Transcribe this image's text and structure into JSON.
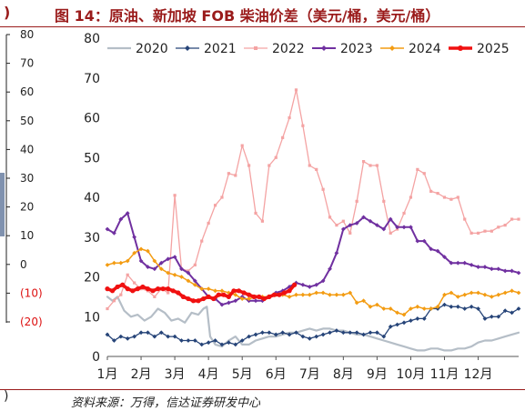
{
  "title": "图 14：原油、新加坡 FOB 柴油价差（美元/桶，美元/桶）",
  "source": "资料来源：万得，信达证券研发中心",
  "left_panel": {
    "ticks": [
      "80",
      "70",
      "60",
      "50",
      "40",
      "30",
      "20",
      "10",
      "0",
      "(10)",
      "(20)"
    ],
    "neg_color": "#dd1111"
  },
  "chart_data": {
    "type": "line",
    "title": "",
    "xlabel": "",
    "ylabel": "",
    "ylim": [
      0,
      80
    ],
    "yticks": [
      0,
      10,
      20,
      30,
      40,
      50,
      60,
      70,
      80
    ],
    "x_range": [
      1,
      13.2
    ],
    "xtick_positions": [
      1,
      2,
      3,
      4,
      5,
      6,
      7,
      8,
      9,
      10,
      11,
      12
    ],
    "xtick_labels": [
      "1月",
      "2月",
      "3月",
      "4月",
      "5月",
      "6月",
      "7月",
      "8月",
      "9月",
      "10月",
      "11月",
      "12月"
    ],
    "grid": false,
    "legend": "top",
    "series": [
      {
        "name": "2020",
        "color": "#b5bec7",
        "width": 2.2,
        "marker": "none",
        "x": [
          1.0,
          1.15,
          1.3,
          1.5,
          1.7,
          1.9,
          2.1,
          2.3,
          2.5,
          2.7,
          2.9,
          3.1,
          3.3,
          3.5,
          3.7,
          3.85,
          3.95,
          4.05,
          4.2,
          4.4,
          4.6,
          4.8,
          5.0,
          5.2,
          5.4,
          5.6,
          5.8,
          6.0,
          6.2,
          6.4,
          6.6,
          6.8,
          7.0,
          7.2,
          7.4,
          7.6,
          7.8,
          8.0,
          8.2,
          8.4,
          8.6,
          8.8,
          9.0,
          9.2,
          9.4,
          9.6,
          9.8,
          10.0,
          10.2,
          10.4,
          10.6,
          10.8,
          11.0,
          11.2,
          11.4,
          11.6,
          11.8,
          12.0,
          12.2,
          12.4,
          12.6,
          12.8,
          13.0,
          13.2
        ],
        "y": [
          15,
          14,
          15,
          11.5,
          10,
          10.5,
          9,
          10,
          12,
          11,
          9,
          9.5,
          8.5,
          11,
          10.5,
          12,
          12.5,
          5,
          3,
          2.5,
          4,
          5,
          3,
          3,
          4,
          4.5,
          5,
          5,
          5.5,
          6,
          6,
          6.5,
          7,
          6.5,
          7,
          7,
          6.5,
          6.5,
          6,
          5.5,
          5.5,
          5,
          4.5,
          4,
          3.5,
          3,
          2.5,
          2,
          1.5,
          1.5,
          2,
          2,
          1.5,
          1.5,
          2,
          2,
          2.5,
          3.5,
          4,
          4,
          4.5,
          5,
          5.5,
          6
        ]
      },
      {
        "name": "2021",
        "color": "#264478",
        "width": 1.3,
        "marker": "diamond",
        "x": [
          1.0,
          1.2,
          1.4,
          1.6,
          1.8,
          2.0,
          2.2,
          2.4,
          2.6,
          2.8,
          3.0,
          3.2,
          3.4,
          3.6,
          3.8,
          4.0,
          4.2,
          4.4,
          4.6,
          4.8,
          5.0,
          5.2,
          5.4,
          5.6,
          5.8,
          6.0,
          6.2,
          6.4,
          6.6,
          6.8,
          7.0,
          7.2,
          7.4,
          7.6,
          7.8,
          8.0,
          8.2,
          8.4,
          8.6,
          8.8,
          9.0,
          9.2,
          9.4,
          9.6,
          9.8,
          10.0,
          10.2,
          10.4,
          10.6,
          10.8,
          11.0,
          11.2,
          11.4,
          11.6,
          11.8,
          12.0,
          12.2,
          12.4,
          12.6,
          12.8,
          13.0,
          13.2
        ],
        "y": [
          5.5,
          4,
          5,
          4.5,
          5,
          6,
          6,
          5,
          6,
          5,
          5,
          4,
          4,
          4,
          3,
          3.5,
          4,
          3,
          3.5,
          3,
          4,
          5,
          5.5,
          6,
          6,
          5.5,
          6,
          5.5,
          6,
          5,
          4.5,
          5,
          5.5,
          6,
          6.5,
          6,
          6,
          6,
          5.5,
          6,
          6,
          5,
          7.5,
          8,
          8.5,
          9,
          9.5,
          9.5,
          12,
          12,
          13,
          12.5,
          12.5,
          12,
          12.5,
          12,
          9.5,
          10,
          10,
          11.5,
          11,
          12
        ]
      },
      {
        "name": "2022",
        "color": "#f4a3a3",
        "width": 1.3,
        "marker": "square",
        "x": [
          1.0,
          1.2,
          1.4,
          1.6,
          1.8,
          2.0,
          2.2,
          2.4,
          2.6,
          2.8,
          3.0,
          3.2,
          3.4,
          3.6,
          3.8,
          4.0,
          4.2,
          4.4,
          4.6,
          4.8,
          5.0,
          5.2,
          5.4,
          5.6,
          5.8,
          6.0,
          6.2,
          6.4,
          6.6,
          6.8,
          7.0,
          7.2,
          7.4,
          7.6,
          7.8,
          8.0,
          8.2,
          8.4,
          8.6,
          8.8,
          9.0,
          9.2,
          9.4,
          9.6,
          9.8,
          10.0,
          10.2,
          10.4,
          10.6,
          10.8,
          11.0,
          11.2,
          11.4,
          11.6,
          11.8,
          12.0,
          12.2,
          12.4,
          12.6,
          12.8,
          13.0,
          13.2
        ],
        "y": [
          12,
          14,
          15.5,
          20.5,
          18.5,
          17,
          16.5,
          15,
          17,
          16,
          40.5,
          22,
          21.5,
          23,
          29,
          33.5,
          38,
          40,
          46,
          45.5,
          53,
          48,
          36,
          34,
          48,
          50,
          55,
          60,
          67,
          58,
          48,
          47,
          42,
          35,
          33,
          34,
          31,
          39,
          49,
          48,
          48,
          39,
          31,
          32,
          36,
          40,
          47,
          46,
          41.5,
          41,
          40,
          39.5,
          40,
          34.5,
          31,
          31,
          31.5,
          31.5,
          32.5,
          33,
          34.5,
          34.5
        ]
      },
      {
        "name": "2023",
        "color": "#7030a0",
        "width": 2.0,
        "marker": "diamond",
        "x": [
          1.0,
          1.2,
          1.4,
          1.6,
          1.8,
          2.0,
          2.2,
          2.4,
          2.6,
          2.8,
          3.0,
          3.2,
          3.4,
          3.6,
          3.8,
          4.0,
          4.2,
          4.4,
          4.6,
          4.8,
          5.0,
          5.2,
          5.4,
          5.6,
          5.8,
          6.0,
          6.2,
          6.4,
          6.6,
          6.8,
          7.0,
          7.2,
          7.4,
          7.6,
          7.8,
          8.0,
          8.2,
          8.4,
          8.6,
          8.8,
          9.0,
          9.2,
          9.4,
          9.6,
          9.8,
          10.0,
          10.2,
          10.4,
          10.6,
          10.8,
          11.0,
          11.2,
          11.4,
          11.6,
          11.8,
          12.0,
          12.2,
          12.4,
          12.6,
          12.8,
          13.0,
          13.2
        ],
        "y": [
          32,
          31,
          34.5,
          36,
          30,
          24,
          22.5,
          22,
          23.5,
          24.5,
          25,
          22,
          21,
          19,
          17,
          15,
          14.5,
          13,
          13.5,
          14,
          15,
          14,
          14,
          14,
          15,
          16,
          16.5,
          17.5,
          18.5,
          18,
          17.5,
          18,
          19,
          22,
          26,
          32,
          33,
          33.5,
          35,
          34,
          33,
          32,
          34.5,
          32.5,
          32.5,
          32.5,
          29,
          29,
          27,
          26.5,
          25,
          23.5,
          23.5,
          23.5,
          23,
          22.5,
          22.5,
          22,
          22,
          21.5,
          21.5,
          21
        ]
      },
      {
        "name": "2024",
        "color": "#f39c12",
        "width": 1.5,
        "marker": "diamond",
        "x": [
          1.0,
          1.2,
          1.4,
          1.6,
          1.8,
          2.0,
          2.2,
          2.4,
          2.6,
          2.8,
          3.0,
          3.2,
          3.4,
          3.6,
          3.8,
          4.0,
          4.2,
          4.4,
          4.6,
          4.8,
          5.0,
          5.2,
          5.4,
          5.6,
          5.8,
          6.0,
          6.2,
          6.4,
          6.6,
          6.8,
          7.0,
          7.2,
          7.4,
          7.6,
          7.8,
          8.0,
          8.2,
          8.4,
          8.6,
          8.8,
          9.0,
          9.2,
          9.4,
          9.6,
          9.8,
          10.0,
          10.2,
          10.4,
          10.6,
          10.8,
          11.0,
          11.2,
          11.4,
          11.6,
          11.8,
          12.0,
          12.2,
          12.4,
          12.6,
          12.8,
          13.0,
          13.2
        ],
        "y": [
          23,
          23.5,
          23.5,
          24,
          26,
          27,
          26.5,
          24,
          22,
          21,
          20.5,
          20,
          19,
          18,
          17,
          17,
          16.5,
          16.5,
          16,
          15.5,
          14.5,
          14.5,
          15,
          15,
          15,
          15.5,
          15.5,
          15,
          15.5,
          15.5,
          15.5,
          16,
          16,
          15.5,
          15.5,
          15.5,
          16,
          13.5,
          14,
          12.5,
          13,
          12,
          12,
          11,
          10.5,
          12,
          12.5,
          12,
          12,
          12.5,
          15.5,
          16,
          15,
          15.5,
          16,
          16,
          15.5,
          15,
          15.5,
          16,
          16.5,
          16
        ]
      },
      {
        "name": "2025",
        "color": "#f01010",
        "width": 3.6,
        "marker": "circle",
        "x": [
          1.0,
          1.15,
          1.3,
          1.45,
          1.6,
          1.75,
          1.9,
          2.05,
          2.2,
          2.35,
          2.5,
          2.65,
          2.8,
          2.95,
          3.1,
          3.25,
          3.4,
          3.55,
          3.7,
          3.85,
          4.0,
          4.15,
          4.3,
          4.45,
          4.6,
          4.75,
          4.9,
          5.05,
          5.2,
          5.35,
          5.5,
          5.65,
          5.8,
          5.95,
          6.1,
          6.25,
          6.4,
          6.55
        ],
        "y": [
          17,
          16.5,
          17.5,
          18,
          17,
          16.5,
          17,
          17.5,
          17,
          16.5,
          17,
          17,
          17,
          16.5,
          16,
          15,
          14.5,
          14,
          14,
          14.5,
          15,
          14.5,
          15.5,
          15.5,
          15,
          16.5,
          16.5,
          16,
          15.5,
          15,
          15,
          14.5,
          15,
          15.5,
          15.5,
          16,
          16.5,
          18
        ]
      }
    ]
  }
}
